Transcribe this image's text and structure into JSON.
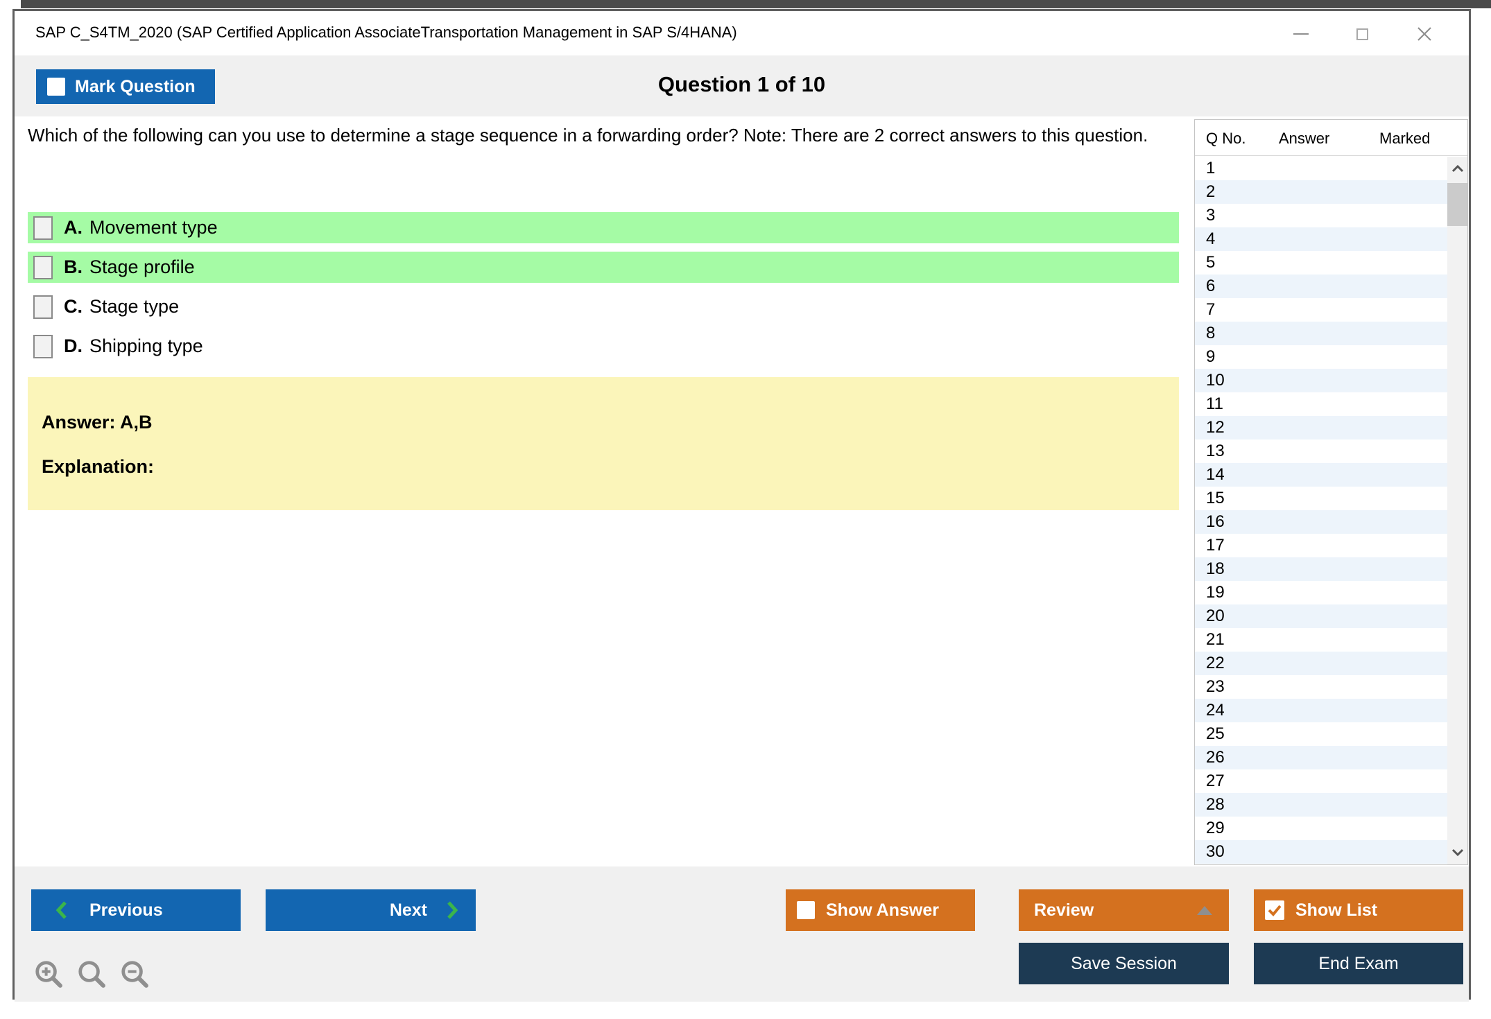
{
  "window": {
    "title": "SAP C_S4TM_2020 (SAP Certified Application AssociateTransportation Management in SAP S/4HANA)",
    "controls": [
      "minimize-icon",
      "maximize-icon",
      "close-icon"
    ]
  },
  "header": {
    "mark_question_label": "Mark Question",
    "question_counter": "Question 1 of 10"
  },
  "question": {
    "text": "Which of the following can you use to determine a stage sequence in a forwarding order? Note: There are 2 correct answers to this question.",
    "options": [
      {
        "letter": "A.",
        "text": "Movement type",
        "highlighted": true,
        "checked": false
      },
      {
        "letter": "B.",
        "text": "Stage profile",
        "highlighted": true,
        "checked": false
      },
      {
        "letter": "C.",
        "text": "Stage type",
        "highlighted": false,
        "checked": false
      },
      {
        "letter": "D.",
        "text": "Shipping type",
        "highlighted": false,
        "checked": false
      }
    ],
    "answer_label": "Answer: A,B",
    "explanation_label": "Explanation:"
  },
  "question_list": {
    "columns": [
      "Q No.",
      "Answer",
      "Marked"
    ],
    "row_numbers": [
      1,
      2,
      3,
      4,
      5,
      6,
      7,
      8,
      9,
      10,
      11,
      12,
      13,
      14,
      15,
      16,
      17,
      18,
      19,
      20,
      21,
      22,
      23,
      24,
      25,
      26,
      27,
      28,
      29,
      30
    ]
  },
  "footer": {
    "previous_label": "Previous",
    "next_label": "Next",
    "show_answer_label": "Show Answer",
    "show_answer_checked": false,
    "review_label": "Review",
    "show_list_label": "Show List",
    "show_list_checked": true,
    "save_session_label": "Save Session",
    "end_exam_label": "End Exam",
    "zoom_icons": [
      "zoom-in-icon",
      "zoom-icon",
      "zoom-out-icon"
    ]
  },
  "colors": {
    "accent_blue": "#1366b1",
    "accent_orange": "#d4711f",
    "navy": "#1d3a53",
    "highlight_green": "#a5fba5",
    "answer_yellow": "#fbf5ba",
    "band_gray": "#f0f0f0",
    "row_alt_blue": "#edf4fb",
    "chevron_green": "#3bb54a"
  }
}
